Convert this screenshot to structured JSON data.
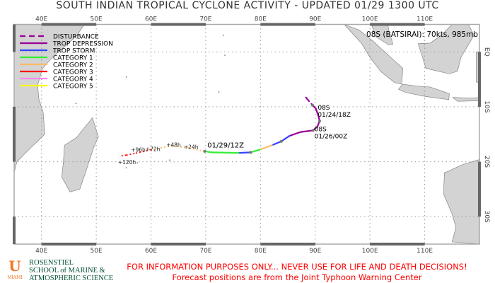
{
  "title": "SOUTH INDIAN TROPICAL CYCLONE ACTIVITY - UPDATED 01/29 1300 UTC",
  "map": {
    "lon_range": [
      35,
      120
    ],
    "lat_range": [
      -35,
      5
    ],
    "lon_ticks": [
      "40E",
      "50E",
      "60E",
      "70E",
      "80E",
      "90E",
      "100E",
      "110E"
    ],
    "lat_ticks": [
      "EQ",
      "10S",
      "20S",
      "30S"
    ],
    "land_color": "#d3d3d3",
    "grid": "dotted, every 10 degrees"
  },
  "legend": [
    {
      "label": "DISTURBANCE",
      "color": "#990099",
      "dashed": true
    },
    {
      "label": "TROP DEPRESSION",
      "color": "#990099"
    },
    {
      "label": "TROP STORM",
      "color": "#3344ff"
    },
    {
      "label": "CATEGORY 1",
      "color": "#33ee33"
    },
    {
      "label": "CATEGORY 2",
      "color": "#ffbb66"
    },
    {
      "label": "CATEGORY 3",
      "color": "#ff1111"
    },
    {
      "label": "CATEGORY 4",
      "color": "#ff88ee"
    },
    {
      "label": "CATEGORY 5",
      "color": "#ffff00"
    }
  ],
  "storm": {
    "info": "08S (BATSIRAI): 70kts, 985mb",
    "track": [
      {
        "lon": 88.3,
        "lat": -8.3,
        "cat": 0
      },
      {
        "lon": 89.5,
        "lat": -9.7,
        "cat": 0
      },
      {
        "lon": 90.1,
        "lat": -10.3,
        "cat": 1
      },
      {
        "lon": 90.6,
        "lat": -11.7,
        "cat": 1
      },
      {
        "lon": 90.8,
        "lat": -12.6,
        "cat": 1
      },
      {
        "lon": 90.4,
        "lat": -13.6,
        "cat": 1
      },
      {
        "lon": 89.6,
        "lat": -14.3,
        "cat": 1
      },
      {
        "lon": 87.3,
        "lat": -14.6,
        "cat": 1
      },
      {
        "lon": 85.3,
        "lat": -15.3,
        "cat": 1
      },
      {
        "lon": 83.8,
        "lat": -16.3,
        "cat": 2
      },
      {
        "lon": 82.1,
        "lat": -17.0,
        "cat": 2
      },
      {
        "lon": 79.9,
        "lat": -17.8,
        "cat": 5
      },
      {
        "lon": 78.2,
        "lat": -18.3,
        "cat": 4
      },
      {
        "lon": 76.0,
        "lat": -18.4,
        "cat": 2
      },
      {
        "lon": 71.1,
        "lat": -18.3,
        "cat": 4
      },
      {
        "lon": 69.8,
        "lat": -18.1,
        "cat": 4
      }
    ],
    "forecast": [
      {
        "lon": 69.8,
        "lat": -18.1,
        "cat": 4
      },
      {
        "lon": 66.9,
        "lat": -17.5,
        "cat": 5
      },
      {
        "lon": 63.9,
        "lat": -17.1,
        "cat": 5
      },
      {
        "lon": 60.0,
        "lat": -17.8,
        "cat": 5
      },
      {
        "lon": 57.0,
        "lat": -18.5,
        "cat": 6
      },
      {
        "lon": 55.5,
        "lat": -18.8,
        "cat": 6
      },
      {
        "lon": 54.2,
        "lat": -19.0,
        "cat": 6
      }
    ],
    "labels": [
      {
        "name": "08S",
        "time": "01/24/18Z",
        "lon": 90.2,
        "lat": -10.4
      },
      {
        "name": "08S",
        "time": "01/26/00Z",
        "lon": 89.6,
        "lat": -14.3
      }
    ],
    "current_label": "01/29/12Z",
    "forecast_labels": [
      {
        "text": "+24h",
        "lon": 66.0,
        "lat": -17.3
      },
      {
        "text": "+48h",
        "lon": 62.8,
        "lat": -16.9
      },
      {
        "text": "+72h",
        "lon": 59.0,
        "lat": -17.7
      },
      {
        "text": "+96h",
        "lon": 56.6,
        "lat": -18.3
      },
      {
        "text": "+120h",
        "lon": 55.0,
        "lat": -18.8
      }
    ]
  },
  "footer": {
    "logo_letter": "U",
    "logo_city": "MIAMI",
    "school_lines": [
      "ROSENSTIEL",
      "SCHOOL of MARINE &",
      "ATMOSPHERIC SCIENCE"
    ],
    "disclaimer": "FOR INFORMATION PURPOSES ONLY... NEVER USE FOR LIFE AND DEATH DECISIONS!",
    "source_note": "Forecast positions are from the Joint Typhoon Warning Center"
  }
}
